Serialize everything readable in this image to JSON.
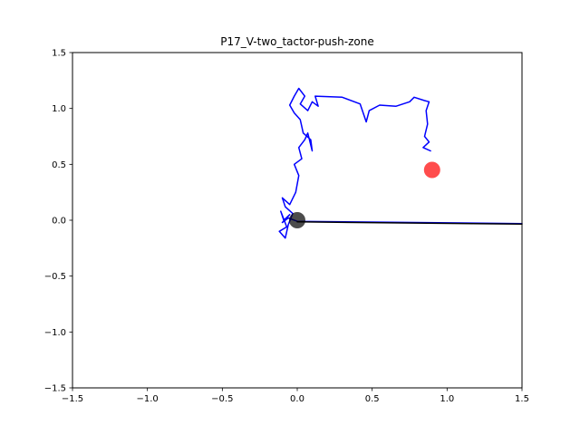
{
  "chart_data": {
    "type": "line",
    "title": "P17_V-two_tactor-push-zone",
    "xlabel": "",
    "ylabel": "",
    "xlim": [
      -1.5,
      1.5
    ],
    "ylim": [
      -1.5,
      1.5
    ],
    "x_ticks": [
      -1.5,
      -1.0,
      -0.5,
      0.0,
      0.5,
      1.0,
      1.5
    ],
    "x_tick_labels": [
      "−1.5",
      "−1.0",
      "−0.5",
      "0.0",
      "0.5",
      "1.0",
      "1.5"
    ],
    "y_ticks": [
      -1.5,
      -1.0,
      -0.5,
      0.0,
      0.5,
      1.0,
      1.5
    ],
    "y_tick_labels": [
      "−1.5",
      "−1.0",
      "−0.5",
      "0.0",
      "0.5",
      "1.0",
      "1.5"
    ],
    "grid": false,
    "legend": "none",
    "series": [
      {
        "color": "#0000ff",
        "points": [
          [
            1.5,
            -0.03
          ],
          [
            0.0,
            -0.01
          ],
          [
            -0.06,
            0.02
          ],
          [
            -0.1,
            -0.02
          ],
          [
            -0.05,
            0.05
          ],
          [
            -0.09,
            0.0
          ],
          [
            -0.11,
            0.08
          ],
          [
            -0.07,
            -0.06
          ],
          [
            -0.12,
            -0.1
          ],
          [
            -0.08,
            -0.16
          ],
          [
            -0.06,
            -0.04
          ],
          [
            -0.03,
            0.06
          ],
          [
            -0.08,
            0.12
          ],
          [
            -0.1,
            0.2
          ],
          [
            -0.05,
            0.14
          ],
          [
            -0.01,
            0.25
          ],
          [
            0.01,
            0.4
          ],
          [
            -0.02,
            0.5
          ],
          [
            0.03,
            0.55
          ],
          [
            0.01,
            0.65
          ],
          [
            0.05,
            0.72
          ],
          [
            0.07,
            0.78
          ],
          [
            0.1,
            0.62
          ],
          [
            0.09,
            0.72
          ],
          [
            0.04,
            0.78
          ],
          [
            0.02,
            0.9
          ],
          [
            -0.02,
            0.96
          ],
          [
            -0.05,
            1.03
          ],
          [
            -0.02,
            1.11
          ],
          [
            0.01,
            1.18
          ],
          [
            0.05,
            1.11
          ],
          [
            0.02,
            1.04
          ],
          [
            0.07,
            0.98
          ],
          [
            0.1,
            1.06
          ],
          [
            0.14,
            1.02
          ],
          [
            0.12,
            1.11
          ],
          [
            0.3,
            1.1
          ],
          [
            0.42,
            1.04
          ],
          [
            0.46,
            0.88
          ],
          [
            0.48,
            0.98
          ],
          [
            0.55,
            1.03
          ],
          [
            0.66,
            1.02
          ],
          [
            0.75,
            1.06
          ],
          [
            0.78,
            1.1
          ],
          [
            0.85,
            1.07
          ],
          [
            0.88,
            1.06
          ],
          [
            0.86,
            0.98
          ],
          [
            0.87,
            0.86
          ],
          [
            0.85,
            0.75
          ],
          [
            0.88,
            0.7
          ],
          [
            0.84,
            0.65
          ],
          [
            0.89,
            0.62
          ]
        ]
      },
      {
        "color": "#000000",
        "points": [
          [
            0.0,
            -0.015
          ],
          [
            1.5,
            -0.035
          ]
        ]
      }
    ],
    "markers": [
      {
        "x": 0.0,
        "y": 0.0,
        "color": "#000000"
      },
      {
        "x": 0.9,
        "y": 0.45,
        "color": "#ff0000"
      }
    ]
  }
}
